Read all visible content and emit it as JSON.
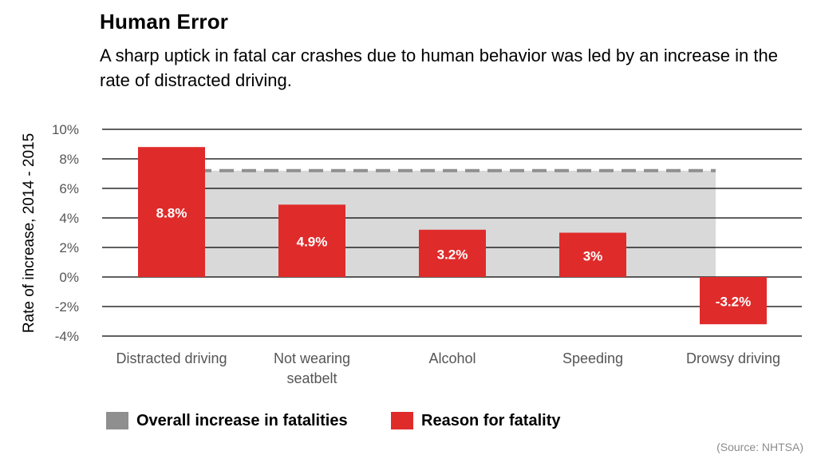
{
  "title": "Human Error",
  "subtitle": "A sharp uptick in fatal car crashes due to human behavior was led by an increase in the rate of distracted driving.",
  "source": "(Source: NHTSA)",
  "colors": {
    "bar": "#e02b2b",
    "overall_fill": "#d9d9d9",
    "overall_line": "#8f8f8f",
    "grid": "#000000",
    "tick_text": "#555555"
  },
  "chart_data": {
    "type": "bar",
    "ylabel": "Rate of increase, 2014 - 2015",
    "ylim": [
      -4,
      10
    ],
    "yticks": [
      10,
      8,
      6,
      4,
      2,
      0,
      -2,
      -4
    ],
    "ytick_labels": [
      "10%",
      "8%",
      "6%",
      "4%",
      "2%",
      "0%",
      "-2%",
      "-4%"
    ],
    "grid": true,
    "legend_position": "bottom",
    "categories": [
      [
        "Distracted driving"
      ],
      [
        "Not wearing",
        "seatbelt"
      ],
      [
        "Alcohol"
      ],
      [
        "Speeding"
      ],
      [
        "Drowsy driving"
      ]
    ],
    "series": [
      {
        "name": "Reason for fatality",
        "values": [
          8.8,
          4.9,
          3.2,
          3.0,
          -3.2
        ],
        "labels": [
          "8.8%",
          "4.9%",
          "3.2%",
          "3%",
          "-3.2%"
        ]
      },
      {
        "name": "Overall increase in fatalities",
        "value": 7.2
      }
    ]
  }
}
